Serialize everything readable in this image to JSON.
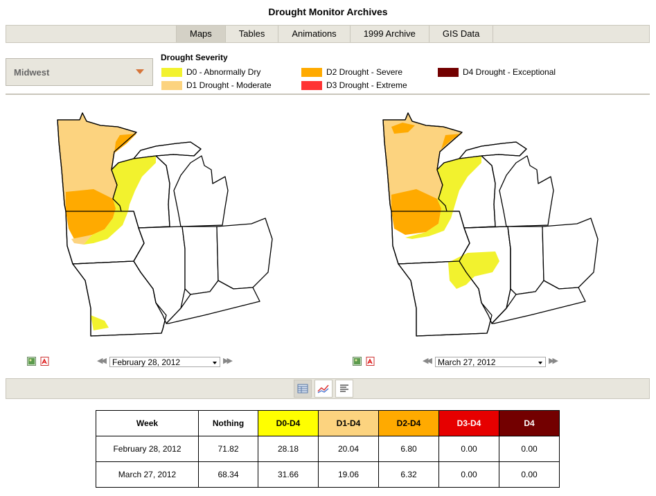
{
  "page": {
    "title": "Drought Monitor Archives"
  },
  "tabs": [
    {
      "label": "Maps",
      "active": true
    },
    {
      "label": "Tables"
    },
    {
      "label": "Animations"
    },
    {
      "label": "1999 Archive"
    },
    {
      "label": "GIS Data"
    }
  ],
  "region": {
    "selected": "Midwest"
  },
  "legend": {
    "title": "Drought Severity",
    "items": [
      {
        "code": "D0",
        "label": "D0 - Abnormally Dry",
        "color": "#ffff00"
      },
      {
        "code": "D1",
        "label": "D1 Drought - Moderate",
        "color": "#fcd37f"
      },
      {
        "code": "D2",
        "label": "D2 Drought - Severe",
        "color": "#ffaa00"
      },
      {
        "code": "D3",
        "label": "D3 Drought - Extreme",
        "color": "#ff3333"
      },
      {
        "code": "D4",
        "label": "D4 Drought - Exceptional",
        "color": "#730000"
      }
    ]
  },
  "maps": [
    {
      "date": "February 28, 2012",
      "image_icon": "image-icon",
      "pdf_icon": "pdf-icon"
    },
    {
      "date": "March 27, 2012",
      "image_icon": "image-icon",
      "pdf_icon": "pdf-icon"
    }
  ],
  "view_buttons": [
    {
      "icon": "table-icon",
      "active": true
    },
    {
      "icon": "chart-icon"
    },
    {
      "icon": "text-icon"
    }
  ],
  "table": {
    "headers": [
      "Week",
      "Nothing",
      "D0-D4",
      "D1-D4",
      "D2-D4",
      "D3-D4",
      "D4"
    ],
    "header_colors": [
      "#ffffff",
      "#ffffff",
      "#ffff00",
      "#fcd37f",
      "#ffaa00",
      "#e60000",
      "#730000"
    ],
    "header_text_colors": [
      "#000000",
      "#000000",
      "#000000",
      "#000000",
      "#000000",
      "#ffffff",
      "#ffffff"
    ],
    "rows": [
      [
        "February 28, 2012",
        "71.82",
        "28.18",
        "20.04",
        "6.80",
        "0.00",
        "0.00"
      ],
      [
        "March 27, 2012",
        "68.34",
        "31.66",
        "19.06",
        "6.32",
        "0.00",
        "0.00"
      ]
    ]
  }
}
